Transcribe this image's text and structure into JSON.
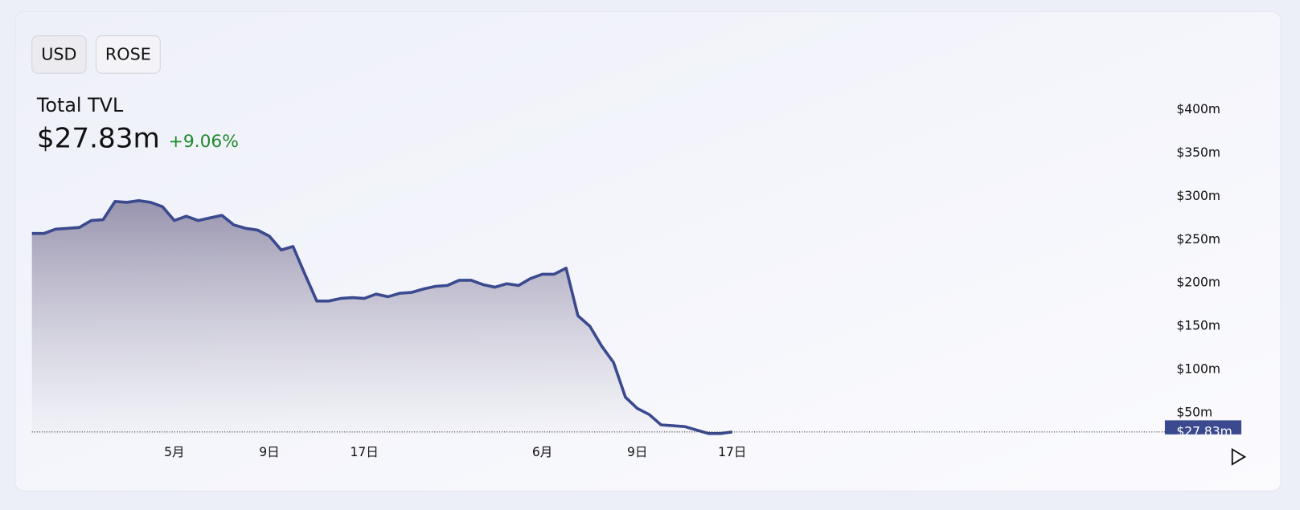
{
  "buttons": [
    "USD",
    "ROSE"
  ],
  "header": {
    "title": "Total TVL",
    "value": "$27.83m",
    "change": "+9.06%"
  },
  "chart_data": {
    "type": "area",
    "color": "#3b4a8f",
    "categories": [
      null,
      null,
      null,
      null,
      null,
      null,
      null,
      null,
      null,
      null,
      null,
      null,
      "5月",
      null,
      null,
      null,
      null,
      null,
      null,
      null,
      "9日",
      null,
      null,
      null,
      null,
      null,
      null,
      null,
      "17日",
      null,
      null,
      null,
      null,
      null,
      null,
      null,
      null,
      null,
      null,
      null,
      null,
      null,
      null,
      "6月",
      null,
      null,
      null,
      null,
      null,
      null,
      null,
      "9日",
      null,
      null,
      null,
      null,
      null,
      null,
      null,
      "17日"
    ],
    "values": [
      257,
      257,
      262,
      263,
      264,
      272,
      273,
      294,
      293,
      295,
      293,
      288,
      272,
      277,
      272,
      275,
      278,
      267,
      263,
      261,
      254,
      238,
      242,
      210,
      179,
      179,
      182,
      183,
      182,
      187,
      184,
      188,
      189,
      193,
      196,
      197,
      203,
      203,
      198,
      195,
      199,
      197,
      205,
      210,
      210,
      217,
      162,
      150,
      127,
      108,
      68,
      55,
      48,
      36,
      35,
      34,
      30,
      26,
      26,
      27.83
    ],
    "ylim": [
      25,
      420
    ],
    "yticks": [
      {
        "value": 50,
        "label": "$50m"
      },
      {
        "value": 100,
        "label": "$100m"
      },
      {
        "value": 150,
        "label": "$150m"
      },
      {
        "value": 200,
        "label": "$200m"
      },
      {
        "value": 250,
        "label": "$250m"
      },
      {
        "value": 300,
        "label": "$300m"
      },
      {
        "value": 350,
        "label": "$350m"
      },
      {
        "value": 400,
        "label": "$400m"
      }
    ]
  }
}
